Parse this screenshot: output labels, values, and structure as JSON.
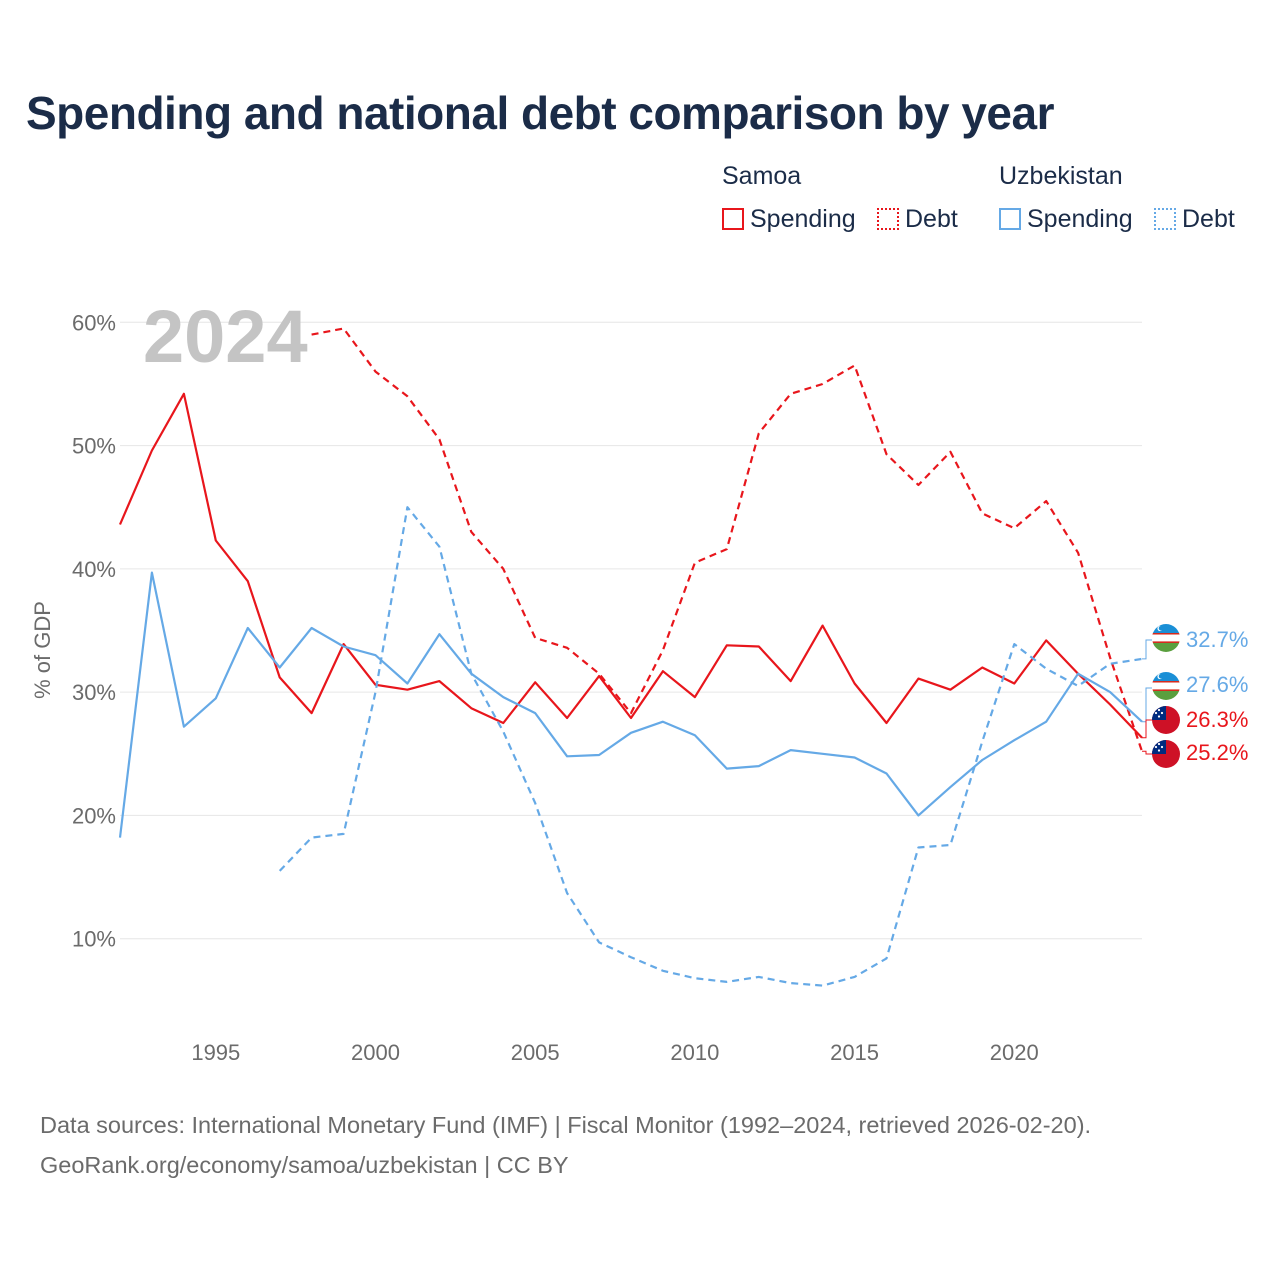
{
  "title": "Spending and national debt comparison by year",
  "legend": {
    "groups": [
      {
        "name": "Samoa",
        "items": [
          {
            "label": "Spending"
          },
          {
            "label": "Debt"
          }
        ]
      },
      {
        "name": "Uzbekistan",
        "items": [
          {
            "label": "Spending"
          },
          {
            "label": "Debt"
          }
        ]
      }
    ]
  },
  "colors": {
    "samoa": "#e8161c",
    "uzbekistan": "#65a9e6"
  },
  "chart_data": {
    "type": "line",
    "title": "Spending and national debt comparison by year",
    "ylabel": "% of GDP",
    "xlabel": "",
    "xlim": [
      1992,
      2024
    ],
    "ylim": [
      3,
      64
    ],
    "yticks": [
      10,
      20,
      30,
      40,
      50,
      60
    ],
    "ytick_labels": [
      "10%",
      "20%",
      "30%",
      "40%",
      "50%",
      "60%"
    ],
    "xticks": [
      1995,
      2000,
      2005,
      2010,
      2015,
      2020
    ],
    "xtick_labels": [
      "1995",
      "2000",
      "2005",
      "2010",
      "2015",
      "2020"
    ],
    "overlay_year": "2024",
    "series": [
      {
        "name": "Samoa Spending",
        "country": "Samoa",
        "kind": "spending",
        "color": "#e8161c",
        "dashed": false,
        "x": [
          1992,
          1993,
          1994,
          1995,
          1996,
          1997,
          1998,
          1999,
          2000,
          2001,
          2002,
          2003,
          2004,
          2005,
          2006,
          2007,
          2008,
          2009,
          2010,
          2011,
          2012,
          2013,
          2014,
          2015,
          2016,
          2017,
          2018,
          2019,
          2020,
          2021,
          2022,
          2023,
          2024
        ],
        "values": [
          43.6,
          49.6,
          54.2,
          42.3,
          39.0,
          31.2,
          28.3,
          33.9,
          30.6,
          30.2,
          30.9,
          28.7,
          27.5,
          30.8,
          27.9,
          31.3,
          27.9,
          31.7,
          29.6,
          33.8,
          33.7,
          30.9,
          35.4,
          30.7,
          27.5,
          31.1,
          30.2,
          32.0,
          30.7,
          34.2,
          31.5,
          29.0,
          26.3
        ],
        "end_label": "26.3%"
      },
      {
        "name": "Samoa Debt",
        "country": "Samoa",
        "kind": "debt",
        "color": "#e8161c",
        "dashed": true,
        "x": [
          1998,
          1999,
          2000,
          2001,
          2002,
          2003,
          2004,
          2005,
          2006,
          2007,
          2008,
          2009,
          2010,
          2011,
          2012,
          2013,
          2014,
          2015,
          2016,
          2017,
          2018,
          2019,
          2020,
          2021,
          2022,
          2023,
          2024
        ],
        "values": [
          59.0,
          59.5,
          56.0,
          54.0,
          50.5,
          43.0,
          40.0,
          34.4,
          33.6,
          31.5,
          28.3,
          33.4,
          40.5,
          41.6,
          51.0,
          54.2,
          55.0,
          56.5,
          49.3,
          46.8,
          49.5,
          44.5,
          43.3,
          45.5,
          41.3,
          32.8,
          25.2
        ],
        "end_label": "25.2%"
      },
      {
        "name": "Uzbekistan Spending",
        "country": "Uzbekistan",
        "kind": "spending",
        "color": "#65a9e6",
        "dashed": false,
        "x": [
          1992,
          1993,
          1994,
          1995,
          1996,
          1997,
          1998,
          1999,
          2000,
          2001,
          2002,
          2003,
          2004,
          2005,
          2006,
          2007,
          2008,
          2009,
          2010,
          2011,
          2012,
          2013,
          2014,
          2015,
          2016,
          2017,
          2018,
          2019,
          2020,
          2021,
          2022,
          2023,
          2024
        ],
        "values": [
          18.2,
          39.7,
          27.2,
          29.5,
          35.2,
          32.0,
          35.2,
          33.7,
          33.0,
          30.7,
          34.7,
          31.5,
          29.6,
          28.3,
          24.8,
          24.9,
          26.7,
          27.6,
          26.5,
          23.8,
          24.0,
          25.3,
          25.0,
          24.7,
          23.4,
          20.0,
          22.3,
          24.5,
          26.1,
          27.6,
          31.5,
          30.0,
          27.6
        ],
        "end_label": "27.6%"
      },
      {
        "name": "Uzbekistan Debt",
        "country": "Uzbekistan",
        "kind": "debt",
        "color": "#65a9e6",
        "dashed": true,
        "x": [
          1997,
          1998,
          1999,
          2000,
          2001,
          2002,
          2003,
          2004,
          2005,
          2006,
          2007,
          2008,
          2009,
          2010,
          2011,
          2012,
          2013,
          2014,
          2015,
          2016,
          2017,
          2018,
          2019,
          2020,
          2021,
          2022,
          2023,
          2024
        ],
        "values": [
          15.5,
          18.2,
          18.5,
          30.0,
          45.0,
          41.8,
          31.5,
          26.8,
          21.0,
          13.7,
          9.7,
          8.5,
          7.4,
          6.8,
          6.5,
          6.9,
          6.4,
          6.2,
          6.9,
          8.4,
          17.4,
          17.6,
          26.0,
          33.9,
          31.9,
          30.5,
          32.3,
          32.7
        ],
        "end_label": "32.7%"
      }
    ]
  },
  "source": {
    "line1": "Data sources: International Monetary Fund (IMF) | Fiscal Monitor (1992–2024, retrieved 2026-02-20).",
    "line2": "GeoRank.org/economy/samoa/uzbekistan | CC BY"
  }
}
